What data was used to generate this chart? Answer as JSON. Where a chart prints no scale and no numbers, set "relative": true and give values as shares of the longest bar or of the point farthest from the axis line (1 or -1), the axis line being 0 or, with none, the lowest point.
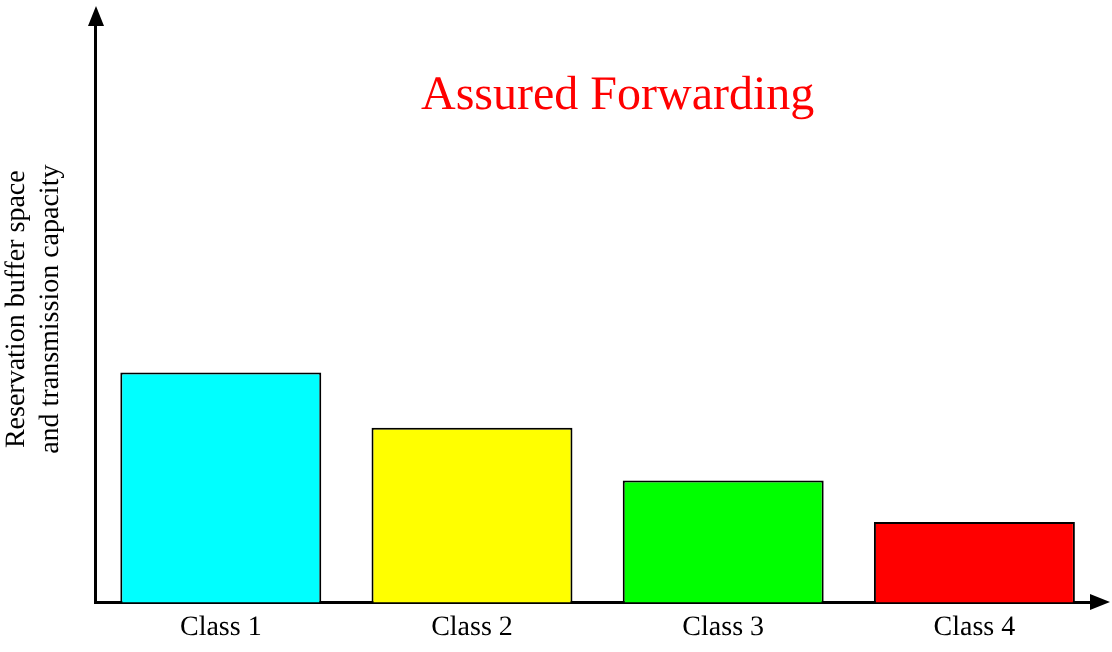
{
  "chart_data": {
    "type": "bar",
    "title": "Assured Forwarding",
    "ylabel": "Reservation buffer space\nand transmission capacity",
    "categories": [
      "Class 1",
      "Class 2",
      "Class 3",
      "Class 4"
    ],
    "values": [
      1,
      0.76,
      0.53,
      0.35
    ],
    "colors": [
      "#00ffff",
      "#ffff00",
      "#00ff00",
      "#ff0000"
    ],
    "relative": true,
    "grid": false,
    "legend": false
  }
}
